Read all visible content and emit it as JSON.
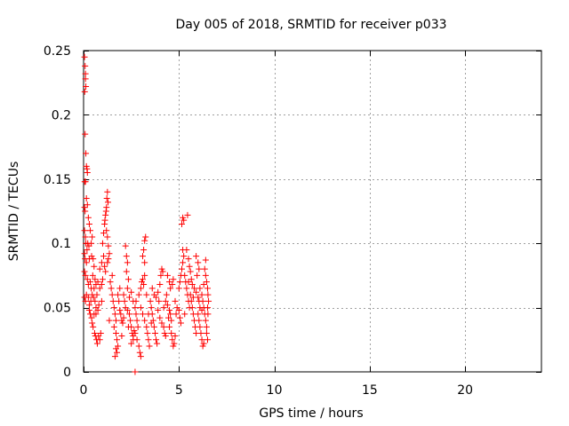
{
  "chart_data": {
    "type": "scatter",
    "title": "Day 005 of 2018, SRMTID for receiver p033",
    "xlabel": "GPS time / hours",
    "ylabel": "SRMTID / TECUs",
    "xlim": [
      0,
      24
    ],
    "ylim": [
      0,
      0.25
    ],
    "xticks": [
      0,
      5,
      10,
      15,
      20
    ],
    "xtick_labels": [
      "0",
      "5",
      "10",
      "15",
      "20"
    ],
    "yticks": [
      0,
      0.05,
      0.1,
      0.15,
      0.2,
      0.25
    ],
    "ytick_labels": [
      "0",
      "0.05",
      "0.1",
      "0.15",
      "0.2",
      "0.25"
    ],
    "grid": true,
    "marker": "+",
    "color": "#ff0000",
    "series": [
      {
        "name": "SRMTID",
        "points": [
          [
            0.05,
            0.245
          ],
          [
            0.08,
            0.238
          ],
          [
            0.1,
            0.232
          ],
          [
            0.12,
            0.222
          ],
          [
            0.06,
            0.218
          ],
          [
            0.1,
            0.228
          ],
          [
            0.08,
            0.185
          ],
          [
            0.12,
            0.17
          ],
          [
            0.15,
            0.16
          ],
          [
            0.18,
            0.158
          ],
          [
            0.2,
            0.155
          ],
          [
            0.06,
            0.148
          ],
          [
            0.1,
            0.148
          ],
          [
            0.05,
            0.128
          ],
          [
            0.08,
            0.125
          ],
          [
            0.15,
            0.135
          ],
          [
            0.2,
            0.13
          ],
          [
            0.25,
            0.12
          ],
          [
            0.3,
            0.115
          ],
          [
            0.35,
            0.11
          ],
          [
            0.05,
            0.11
          ],
          [
            0.1,
            0.105
          ],
          [
            0.12,
            0.1
          ],
          [
            0.18,
            0.095
          ],
          [
            0.22,
            0.1
          ],
          [
            0.28,
            0.098
          ],
          [
            0.4,
            0.1
          ],
          [
            0.45,
            0.105
          ],
          [
            0.05,
            0.092
          ],
          [
            0.08,
            0.088
          ],
          [
            0.15,
            0.085
          ],
          [
            0.3,
            0.088
          ],
          [
            0.42,
            0.09
          ],
          [
            0.5,
            0.088
          ],
          [
            0.55,
            0.082
          ],
          [
            0.05,
            0.078
          ],
          [
            0.1,
            0.075
          ],
          [
            0.2,
            0.072
          ],
          [
            0.25,
            0.068
          ],
          [
            0.35,
            0.07
          ],
          [
            0.48,
            0.075
          ],
          [
            0.6,
            0.072
          ],
          [
            0.05,
            0.058
          ],
          [
            0.1,
            0.055
          ],
          [
            0.15,
            0.06
          ],
          [
            0.25,
            0.058
          ],
          [
            0.3,
            0.052
          ],
          [
            0.38,
            0.055
          ],
          [
            0.45,
            0.06
          ],
          [
            0.52,
            0.058
          ],
          [
            0.6,
            0.055
          ],
          [
            0.7,
            0.06
          ],
          [
            0.3,
            0.048
          ],
          [
            0.35,
            0.045
          ],
          [
            0.42,
            0.042
          ],
          [
            0.55,
            0.045
          ],
          [
            0.65,
            0.05
          ],
          [
            0.75,
            0.048
          ],
          [
            0.8,
            0.052
          ],
          [
            0.45,
            0.038
          ],
          [
            0.5,
            0.035
          ],
          [
            0.58,
            0.03
          ],
          [
            0.62,
            0.028
          ],
          [
            0.68,
            0.025
          ],
          [
            0.72,
            0.022
          ],
          [
            0.78,
            0.028
          ],
          [
            0.85,
            0.025
          ],
          [
            0.9,
            0.03
          ],
          [
            0.4,
            0.065
          ],
          [
            0.55,
            0.065
          ],
          [
            0.65,
            0.068
          ],
          [
            0.75,
            0.07
          ],
          [
            0.85,
            0.065
          ],
          [
            0.95,
            0.068
          ],
          [
            1.0,
            0.072
          ],
          [
            0.85,
            0.08
          ],
          [
            0.95,
            0.085
          ],
          [
            1.05,
            0.09
          ],
          [
            1.1,
            0.082
          ],
          [
            1.15,
            0.078
          ],
          [
            1.0,
            0.1
          ],
          [
            1.05,
            0.108
          ],
          [
            1.1,
            0.115
          ],
          [
            1.15,
            0.122
          ],
          [
            1.2,
            0.128
          ],
          [
            1.22,
            0.135
          ],
          [
            1.25,
            0.14
          ],
          [
            1.28,
            0.132
          ],
          [
            1.18,
            0.125
          ],
          [
            1.12,
            0.118
          ],
          [
            1.2,
            0.11
          ],
          [
            1.25,
            0.105
          ],
          [
            1.3,
            0.098
          ],
          [
            1.35,
            0.092
          ],
          [
            1.3,
            0.088
          ],
          [
            1.25,
            0.085
          ],
          [
            1.4,
            0.07
          ],
          [
            1.45,
            0.065
          ],
          [
            1.5,
            0.06
          ],
          [
            1.55,
            0.055
          ],
          [
            1.6,
            0.05
          ],
          [
            1.65,
            0.045
          ],
          [
            1.7,
            0.04
          ],
          [
            1.6,
            0.035
          ],
          [
            1.7,
            0.03
          ],
          [
            1.75,
            0.025
          ],
          [
            1.8,
            0.02
          ],
          [
            1.75,
            0.015
          ],
          [
            1.65,
            0.012
          ],
          [
            1.7,
            0.018
          ],
          [
            1.8,
            0.06
          ],
          [
            1.85,
            0.055
          ],
          [
            1.9,
            0.048
          ],
          [
            1.95,
            0.045
          ],
          [
            2.0,
            0.04
          ],
          [
            2.05,
            0.038
          ],
          [
            2.1,
            0.042
          ],
          [
            2.2,
            0.098
          ],
          [
            2.25,
            0.09
          ],
          [
            2.3,
            0.085
          ],
          [
            2.25,
            0.078
          ],
          [
            2.35,
            0.072
          ],
          [
            2.3,
            0.065
          ],
          [
            2.1,
            0.06
          ],
          [
            2.15,
            0.055
          ],
          [
            2.2,
            0.05
          ],
          [
            2.3,
            0.048
          ],
          [
            2.4,
            0.045
          ],
          [
            2.45,
            0.04
          ],
          [
            2.5,
            0.035
          ],
          [
            2.55,
            0.03
          ],
          [
            2.6,
            0.025
          ],
          [
            2.4,
            0.058
          ],
          [
            2.5,
            0.062
          ],
          [
            2.6,
            0.055
          ],
          [
            2.7,
            0.05
          ],
          [
            2.75,
            0.045
          ],
          [
            2.8,
            0.04
          ],
          [
            2.5,
            0.022
          ],
          [
            2.6,
            0.028
          ],
          [
            2.65,
            0.032
          ],
          [
            2.7,
            0.03
          ],
          [
            2.8,
            0.025
          ],
          [
            2.9,
            0.02
          ],
          [
            2.95,
            0.015
          ],
          [
            3.0,
            0.012
          ],
          [
            2.9,
            0.06
          ],
          [
            3.0,
            0.065
          ],
          [
            3.05,
            0.07
          ],
          [
            3.1,
            0.072
          ],
          [
            3.15,
            0.068
          ],
          [
            3.2,
            0.075
          ],
          [
            3.1,
            0.09
          ],
          [
            3.15,
            0.095
          ],
          [
            3.2,
            0.102
          ],
          [
            3.25,
            0.105
          ],
          [
            3.2,
            0.085
          ],
          [
            3.0,
            0.05
          ],
          [
            3.1,
            0.045
          ],
          [
            3.2,
            0.04
          ],
          [
            3.3,
            0.035
          ],
          [
            3.35,
            0.03
          ],
          [
            3.4,
            0.025
          ],
          [
            3.45,
            0.02
          ],
          [
            3.5,
            0.055
          ],
          [
            3.55,
            0.05
          ],
          [
            3.6,
            0.045
          ],
          [
            3.65,
            0.04
          ],
          [
            3.7,
            0.035
          ],
          [
            3.75,
            0.03
          ],
          [
            3.8,
            0.025
          ],
          [
            3.85,
            0.022
          ],
          [
            3.6,
            0.065
          ],
          [
            3.7,
            0.06
          ],
          [
            3.8,
            0.058
          ],
          [
            3.9,
            0.062
          ],
          [
            4.0,
            0.068
          ],
          [
            4.05,
            0.075
          ],
          [
            4.1,
            0.08
          ],
          [
            4.15,
            0.078
          ],
          [
            3.9,
            0.048
          ],
          [
            4.0,
            0.042
          ],
          [
            4.1,
            0.038
          ],
          [
            4.2,
            0.035
          ],
          [
            4.25,
            0.03
          ],
          [
            4.3,
            0.028
          ],
          [
            4.2,
            0.05
          ],
          [
            4.3,
            0.055
          ],
          [
            4.35,
            0.06
          ],
          [
            4.4,
            0.052
          ],
          [
            4.5,
            0.048
          ],
          [
            4.55,
            0.045
          ],
          [
            4.6,
            0.04
          ],
          [
            4.5,
            0.035
          ],
          [
            4.6,
            0.03
          ],
          [
            4.65,
            0.025
          ],
          [
            4.7,
            0.02
          ],
          [
            4.75,
            0.022
          ],
          [
            4.8,
            0.028
          ],
          [
            4.4,
            0.075
          ],
          [
            4.5,
            0.07
          ],
          [
            4.55,
            0.065
          ],
          [
            4.65,
            0.068
          ],
          [
            4.7,
            0.072
          ],
          [
            4.8,
            0.055
          ],
          [
            4.9,
            0.05
          ],
          [
            5.0,
            0.048
          ],
          [
            5.05,
            0.042
          ],
          [
            5.1,
            0.038
          ],
          [
            5.0,
            0.065
          ],
          [
            5.05,
            0.07
          ],
          [
            5.1,
            0.075
          ],
          [
            5.15,
            0.08
          ],
          [
            5.2,
            0.085
          ],
          [
            5.25,
            0.09
          ],
          [
            5.2,
            0.095
          ],
          [
            5.15,
            0.115
          ],
          [
            5.2,
            0.12
          ],
          [
            5.45,
            0.122
          ],
          [
            5.25,
            0.118
          ],
          [
            5.3,
            0.075
          ],
          [
            5.35,
            0.07
          ],
          [
            5.4,
            0.065
          ],
          [
            5.45,
            0.06
          ],
          [
            5.5,
            0.055
          ],
          [
            5.55,
            0.05
          ],
          [
            5.4,
            0.095
          ],
          [
            5.5,
            0.088
          ],
          [
            5.55,
            0.082
          ],
          [
            5.6,
            0.078
          ],
          [
            5.65,
            0.072
          ],
          [
            5.6,
            0.06
          ],
          [
            5.65,
            0.055
          ],
          [
            5.7,
            0.05
          ],
          [
            5.75,
            0.045
          ],
          [
            5.8,
            0.04
          ],
          [
            5.85,
            0.035
          ],
          [
            5.9,
            0.03
          ],
          [
            5.7,
            0.068
          ],
          [
            5.8,
            0.065
          ],
          [
            5.9,
            0.062
          ],
          [
            6.0,
            0.058
          ],
          [
            6.05,
            0.055
          ],
          [
            6.1,
            0.05
          ],
          [
            5.9,
            0.09
          ],
          [
            6.0,
            0.085
          ],
          [
            6.05,
            0.08
          ],
          [
            5.95,
            0.075
          ],
          [
            6.0,
            0.045
          ],
          [
            6.05,
            0.04
          ],
          [
            6.1,
            0.035
          ],
          [
            6.15,
            0.03
          ],
          [
            6.2,
            0.025
          ],
          [
            6.25,
            0.02
          ],
          [
            6.3,
            0.022
          ],
          [
            6.1,
            0.065
          ],
          [
            6.2,
            0.06
          ],
          [
            6.25,
            0.055
          ],
          [
            6.3,
            0.05
          ],
          [
            6.35,
            0.045
          ],
          [
            6.4,
            0.04
          ],
          [
            6.45,
            0.035
          ],
          [
            6.35,
            0.08
          ],
          [
            6.4,
            0.075
          ],
          [
            6.45,
            0.07
          ],
          [
            6.5,
            0.065
          ],
          [
            6.52,
            0.06
          ],
          [
            6.55,
            0.055
          ],
          [
            6.5,
            0.05
          ],
          [
            6.4,
            0.087
          ],
          [
            6.45,
            0.03
          ],
          [
            6.5,
            0.025
          ],
          [
            6.52,
            0.045
          ],
          [
            0.65,
            0.045
          ],
          [
            0.95,
            0.055
          ],
          [
            1.35,
            0.04
          ],
          [
            1.5,
            0.075
          ],
          [
            1.9,
            0.065
          ],
          [
            2.0,
            0.028
          ],
          [
            2.35,
            0.035
          ],
          [
            2.75,
            0.055
          ],
          [
            2.85,
            0.035
          ],
          [
            3.3,
            0.06
          ],
          [
            3.4,
            0.045
          ],
          [
            3.55,
            0.038
          ],
          [
            3.95,
            0.055
          ],
          [
            4.45,
            0.042
          ],
          [
            4.85,
            0.045
          ],
          [
            5.3,
            0.045
          ],
          [
            5.5,
            0.07
          ],
          [
            5.75,
            0.058
          ],
          [
            6.2,
            0.048
          ],
          [
            6.3,
            0.068
          ],
          [
            2.7,
            0.0
          ]
        ]
      }
    ]
  }
}
